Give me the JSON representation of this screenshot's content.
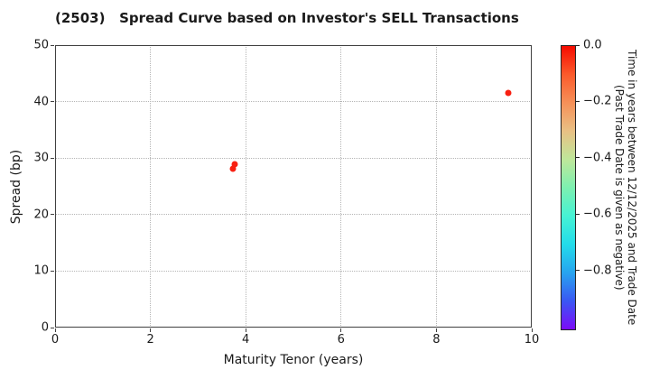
{
  "chart_data": {
    "type": "scatter",
    "title": "(2503)   Spread Curve based on Investor's SELL Transactions",
    "xlabel": "Maturity Tenor (years)",
    "ylabel": "Spread (bp)",
    "xlim": [
      0,
      10
    ],
    "ylim": [
      0,
      50
    ],
    "xticks": [
      0,
      2,
      4,
      6,
      8,
      10
    ],
    "xtick_labels": [
      "0",
      "2",
      "4",
      "6",
      "8",
      "10"
    ],
    "yticks": [
      0,
      10,
      20,
      30,
      40,
      50
    ],
    "ytick_labels": [
      "0",
      "10",
      "20",
      "30",
      "40",
      "50"
    ],
    "grid": true,
    "grid_style": "dotted",
    "legend": "none",
    "points": [
      {
        "x": 3.76,
        "y": 28.9,
        "color_value": 0.0,
        "color": "#f82012"
      },
      {
        "x": 3.74,
        "y": 28.1,
        "color_value": 0.0,
        "color": "#f82012"
      },
      {
        "x": 9.5,
        "y": 41.6,
        "color_value": 0.0,
        "color": "#f82012"
      }
    ],
    "colorbar": {
      "label_line1": "Time in years between 12/12/2025 and Trade Date",
      "label_line2": "(Past Trade Date is given as negative)",
      "vmax": 0.0,
      "vmin": -1.012,
      "ticks": [
        0.0,
        -0.2,
        -0.4,
        -0.6,
        -0.8
      ],
      "tick_labels": [
        "0.0",
        "−0.2",
        "−0.4",
        "−0.6",
        "−0.8"
      ],
      "gradient_top_to_bottom": [
        "#f60b00",
        "#fb5a2b",
        "#f69058",
        "#e9c084",
        "#bfe79a",
        "#7df0b0",
        "#46f2d4",
        "#23dcea",
        "#27a4ef",
        "#3a57f3",
        "#7c0bf9"
      ]
    }
  },
  "colors": {
    "background": "#ffffff",
    "text": "#1a1a1a",
    "spine": "#404040",
    "grid": "#b5b5b5",
    "marker": "#f82012"
  }
}
